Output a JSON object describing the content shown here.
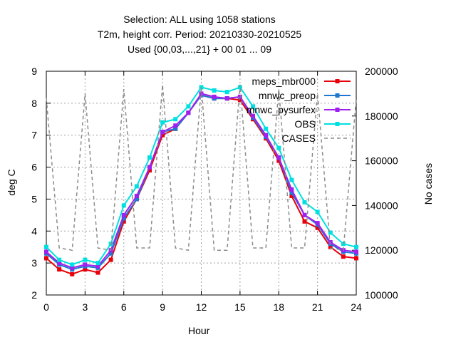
{
  "chart_data": {
    "type": "line",
    "title_lines": [
      "Selection: ALL using  1058 stations",
      "T2m, height corr.   Period: 20210330-20210525",
      "Used {00,03,...,21} + 00 01 ... 09"
    ],
    "xlabel": "Hour",
    "ylabel": "deg C",
    "y2label": "No cases",
    "xlim": [
      0,
      24
    ],
    "ylim": [
      2,
      9
    ],
    "y2lim": [
      100000,
      200000
    ],
    "xticks": [
      "0",
      "3",
      "6",
      "9",
      "12",
      "15",
      "18",
      "21",
      "24"
    ],
    "yticks": [
      "2",
      "3",
      "4",
      "5",
      "6",
      "7",
      "8",
      "9"
    ],
    "y2ticks": [
      "100000",
      "120000",
      "140000",
      "160000",
      "180000",
      "200000"
    ],
    "grid": true,
    "legend_position": "top-right",
    "x": [
      0,
      1,
      2,
      3,
      4,
      5,
      6,
      7,
      8,
      9,
      10,
      11,
      12,
      13,
      14,
      15,
      16,
      17,
      18,
      19,
      20,
      21,
      22,
      23,
      24
    ],
    "series": [
      {
        "name": "meps_mbr000",
        "color": "#e8000b",
        "marker": "square",
        "axis": "y",
        "values": [
          3.15,
          2.8,
          2.65,
          2.8,
          2.7,
          3.1,
          4.3,
          5.0,
          5.9,
          7.0,
          7.2,
          7.7,
          8.25,
          8.15,
          8.15,
          8.1,
          7.5,
          6.9,
          6.2,
          5.1,
          4.3,
          4.1,
          3.5,
          3.2,
          3.15
        ]
      },
      {
        "name": "mnwc_preop",
        "color": "#1f77d0",
        "marker": "square",
        "axis": "y",
        "values": [
          3.3,
          2.95,
          2.8,
          2.9,
          2.85,
          3.3,
          4.4,
          5.0,
          6.0,
          7.1,
          7.2,
          7.7,
          8.25,
          8.15,
          8.15,
          8.2,
          7.55,
          6.95,
          6.3,
          5.2,
          4.5,
          4.2,
          3.6,
          3.35,
          3.3
        ]
      },
      {
        "name": "mnwc_pysurfex",
        "color": "#a020f0",
        "marker": "square",
        "axis": "y",
        "values": [
          3.35,
          3.0,
          2.85,
          2.95,
          2.9,
          3.4,
          4.5,
          5.1,
          6.0,
          7.1,
          7.3,
          7.7,
          8.3,
          8.2,
          8.15,
          8.2,
          7.6,
          7.0,
          6.3,
          5.3,
          4.5,
          4.25,
          3.65,
          3.4,
          3.35
        ]
      },
      {
        "name": "OBS",
        "color": "#00e0e0",
        "marker": "square",
        "axis": "y",
        "values": [
          3.5,
          3.1,
          2.95,
          3.1,
          3.0,
          3.6,
          4.8,
          5.4,
          6.3,
          7.4,
          7.5,
          7.9,
          8.5,
          8.4,
          8.35,
          8.5,
          7.9,
          7.2,
          6.6,
          5.6,
          4.9,
          4.6,
          3.95,
          3.6,
          3.5
        ]
      },
      {
        "name": "CASES",
        "color": "#8c8c8c",
        "marker": "none",
        "dash": true,
        "axis": "y2",
        "values": [
          188000,
          121000,
          120000,
          190000,
          121000,
          120000,
          192000,
          121000,
          121000,
          194000,
          121000,
          120000,
          193000,
          120000,
          120000,
          194000,
          121000,
          121000,
          192000,
          121000,
          121000,
          190000,
          121000,
          120000,
          188000
        ]
      }
    ]
  }
}
